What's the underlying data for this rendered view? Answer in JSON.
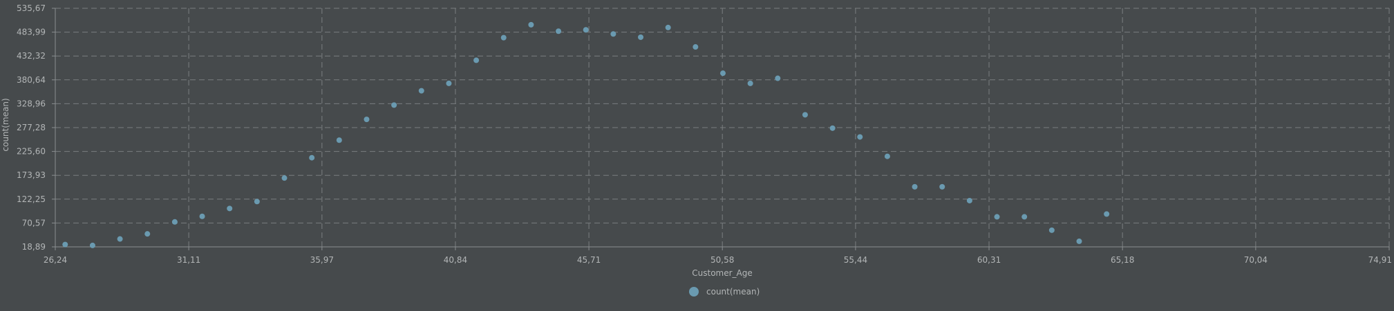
{
  "chart_data": {
    "type": "scatter",
    "xlabel": "Customer_Age",
    "ylabel": "count(mean)",
    "x_ticks": [
      "26,24",
      "31,11",
      "35,97",
      "40,84",
      "45,71",
      "50,58",
      "55,44",
      "60,31",
      "65,18",
      "70,04",
      "74,91"
    ],
    "y_ticks": [
      "18,89",
      "70,57",
      "122,25",
      "173,93",
      "225,60",
      "277,28",
      "328,96",
      "380,64",
      "432,32",
      "483,99",
      "535,67"
    ],
    "xlim": [
      26.24,
      74.91
    ],
    "ylim": [
      18.89,
      535.67
    ],
    "grid": true,
    "legend_position": "bottom-center",
    "series": [
      {
        "name": "count(mean)",
        "color": "#6a9ab0",
        "points": [
          {
            "x": 26.6,
            "y": 24
          },
          {
            "x": 27.6,
            "y": 22
          },
          {
            "x": 28.6,
            "y": 36
          },
          {
            "x": 29.6,
            "y": 47
          },
          {
            "x": 30.6,
            "y": 73
          },
          {
            "x": 31.6,
            "y": 85
          },
          {
            "x": 32.6,
            "y": 102
          },
          {
            "x": 33.6,
            "y": 117
          },
          {
            "x": 34.6,
            "y": 168
          },
          {
            "x": 35.6,
            "y": 212
          },
          {
            "x": 36.6,
            "y": 250
          },
          {
            "x": 37.6,
            "y": 295
          },
          {
            "x": 38.6,
            "y": 326
          },
          {
            "x": 39.6,
            "y": 357
          },
          {
            "x": 40.6,
            "y": 373
          },
          {
            "x": 41.6,
            "y": 423
          },
          {
            "x": 42.6,
            "y": 472
          },
          {
            "x": 43.6,
            "y": 500
          },
          {
            "x": 44.6,
            "y": 486
          },
          {
            "x": 45.6,
            "y": 489
          },
          {
            "x": 46.6,
            "y": 480
          },
          {
            "x": 47.6,
            "y": 473
          },
          {
            "x": 48.6,
            "y": 494
          },
          {
            "x": 49.6,
            "y": 452
          },
          {
            "x": 50.6,
            "y": 395
          },
          {
            "x": 51.6,
            "y": 373
          },
          {
            "x": 52.6,
            "y": 384
          },
          {
            "x": 53.6,
            "y": 305
          },
          {
            "x": 54.6,
            "y": 276
          },
          {
            "x": 55.6,
            "y": 257
          },
          {
            "x": 56.6,
            "y": 215
          },
          {
            "x": 57.6,
            "y": 149
          },
          {
            "x": 58.6,
            "y": 149
          },
          {
            "x": 59.6,
            "y": 119
          },
          {
            "x": 60.6,
            "y": 84
          },
          {
            "x": 61.6,
            "y": 84
          },
          {
            "x": 62.6,
            "y": 55
          },
          {
            "x": 63.6,
            "y": 31
          },
          {
            "x": 64.6,
            "y": 90
          }
        ]
      }
    ]
  },
  "colors": {
    "background": "#464a4c",
    "grid": "#7a7e80",
    "axis": "#8a8e90",
    "text": "#b3b6b7",
    "point": "#6a9ab0"
  }
}
